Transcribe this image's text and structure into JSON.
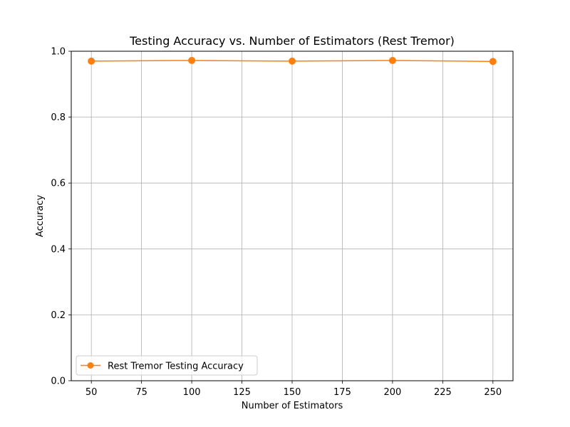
{
  "chart_data": {
    "type": "line",
    "title": "Testing Accuracy vs. Number of Estimators (Rest Tremor)",
    "xlabel": "Number of Estimators",
    "ylabel": "Accuracy",
    "x": [
      50,
      100,
      150,
      200,
      250
    ],
    "series": [
      {
        "name": "Rest Tremor Testing Accuracy",
        "values": [
          0.97,
          0.972,
          0.97,
          0.972,
          0.969
        ],
        "color": "#ff7f0e",
        "marker": "circle"
      }
    ],
    "xlim": [
      40,
      260
    ],
    "ylim": [
      0.0,
      1.0
    ],
    "xticks": [
      50,
      75,
      100,
      125,
      150,
      175,
      200,
      225,
      250
    ],
    "yticks": [
      0.0,
      0.2,
      0.4,
      0.6,
      0.8,
      1.0
    ],
    "xtick_labels": [
      "50",
      "75",
      "100",
      "125",
      "150",
      "175",
      "200",
      "225",
      "250"
    ],
    "ytick_labels": [
      "0.0",
      "0.2",
      "0.4",
      "0.6",
      "0.8",
      "1.0"
    ],
    "grid": true,
    "legend_position": "lower-left"
  }
}
